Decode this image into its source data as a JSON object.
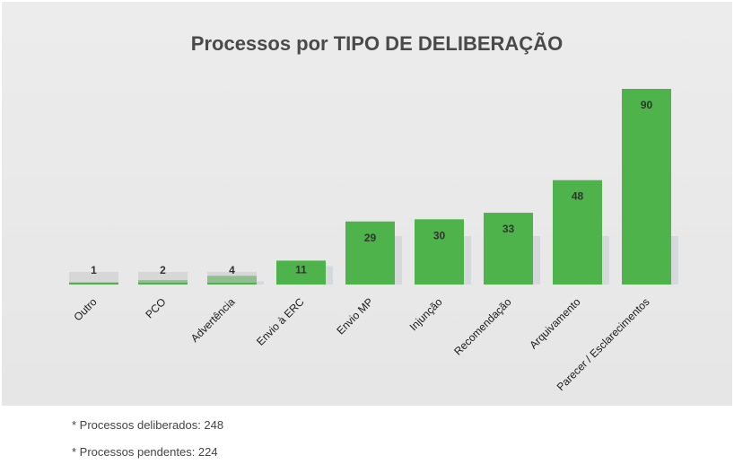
{
  "chart_data": {
    "type": "bar",
    "title": "Processos por TIPO DE DELIBERAÇÃO",
    "categories": [
      "Outro",
      "PCO",
      "Advertência",
      "Envio à ERC",
      "Envio MP",
      "Injunção",
      "Recomendação",
      "Arquivamento",
      "Parecer / Esclarecimentos"
    ],
    "values": [
      1,
      2,
      4,
      11,
      29,
      30,
      33,
      48,
      90
    ],
    "data_labels": [
      "1",
      "2",
      "4",
      "11",
      "29",
      "30",
      "33",
      "48",
      "90"
    ],
    "xlabel": "",
    "ylabel": "",
    "ylim": [
      0,
      90
    ],
    "grid": false,
    "legend": "none",
    "bar_color": "#4db34a",
    "label_bg_color": "#c8c8c8"
  },
  "notes": [
    "* Processos deliberados: 248",
    "* Processos pendentes: 224"
  ]
}
